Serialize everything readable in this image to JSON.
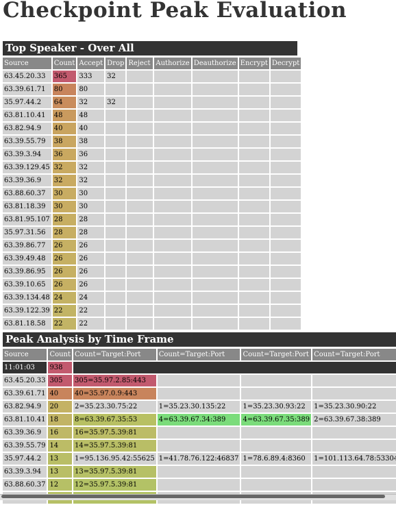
{
  "page": {
    "title": "Checkpoint Peak Evaluation"
  },
  "top_speaker": {
    "heading": "Top Speaker - Over All",
    "columns": [
      "Source",
      "Count",
      "Accept",
      "Drop",
      "Reject",
      "Authorize",
      "Deauthorize",
      "Encrypt",
      "Decrypt"
    ],
    "rows": [
      {
        "source": "63.45.20.33",
        "count": "365",
        "accept": "333",
        "drop": "32",
        "color": "#c25a6e"
      },
      {
        "source": "63.39.61.71",
        "count": "80",
        "accept": "80",
        "drop": "",
        "color": "#c8845c"
      },
      {
        "source": "35.97.44.2",
        "count": "64",
        "accept": "32",
        "drop": "32",
        "color": "#c98c5c"
      },
      {
        "source": "63.81.10.41",
        "count": "48",
        "accept": "48",
        "drop": "",
        "color": "#c99a5e"
      },
      {
        "source": "63.82.94.9",
        "count": "40",
        "accept": "40",
        "drop": "",
        "color": "#c9a45f"
      },
      {
        "source": "63.39.55.79",
        "count": "38",
        "accept": "38",
        "drop": "",
        "color": "#c9a660"
      },
      {
        "source": "63.39.3.94",
        "count": "36",
        "accept": "36",
        "drop": "",
        "color": "#c9a860"
      },
      {
        "source": "63.39.129.45",
        "count": "32",
        "accept": "32",
        "drop": "",
        "color": "#c9aa61"
      },
      {
        "source": "63.39.36.9",
        "count": "32",
        "accept": "32",
        "drop": "",
        "color": "#c9aa61"
      },
      {
        "source": "63.88.60.37",
        "count": "30",
        "accept": "30",
        "drop": "",
        "color": "#c8ac62"
      },
      {
        "source": "63.81.18.39",
        "count": "30",
        "accept": "30",
        "drop": "",
        "color": "#c8ac62"
      },
      {
        "source": "63.81.95.107",
        "count": "28",
        "accept": "28",
        "drop": "",
        "color": "#c7ae62"
      },
      {
        "source": "35.97.31.56",
        "count": "28",
        "accept": "28",
        "drop": "",
        "color": "#c7ae62"
      },
      {
        "source": "63.39.86.77",
        "count": "26",
        "accept": "26",
        "drop": "",
        "color": "#c6b063"
      },
      {
        "source": "63.39.49.48",
        "count": "26",
        "accept": "26",
        "drop": "",
        "color": "#c6b063"
      },
      {
        "source": "63.39.86.95",
        "count": "26",
        "accept": "26",
        "drop": "",
        "color": "#c6b063"
      },
      {
        "source": "63.39.10.65",
        "count": "26",
        "accept": "26",
        "drop": "",
        "color": "#c6b063"
      },
      {
        "source": "63.39.134.48",
        "count": "24",
        "accept": "24",
        "drop": "",
        "color": "#c4b264"
      },
      {
        "source": "63.39.122.39",
        "count": "22",
        "accept": "22",
        "drop": "",
        "color": "#c2b465"
      },
      {
        "source": "63.81.18.58",
        "count": "22",
        "accept": "22",
        "drop": "",
        "color": "#c2b465"
      }
    ]
  },
  "peak_analysis": {
    "heading": "Peak Analysis by Time Frame",
    "columns": [
      "Source",
      "Count",
      "Count=Target:Port",
      "Count=Target:Port",
      "Count=Target:Port",
      "Count=Target:Port",
      "C"
    ],
    "time_row": {
      "time": "11:01:03",
      "count": "938"
    },
    "rows": [
      {
        "source": "63.45.20.33",
        "count": "305",
        "count_color": "#c25a6e",
        "targets": [
          {
            "t": "305=35.97.2.85:443",
            "c": "#c25a6e"
          },
          {
            "t": "",
            "c": ""
          },
          {
            "t": "",
            "c": ""
          },
          {
            "t": "",
            "c": ""
          }
        ]
      },
      {
        "source": "63.39.61.71",
        "count": "40",
        "count_color": "#c8845c",
        "targets": [
          {
            "t": "40=35.97.0.9:443",
            "c": "#c8845c"
          },
          {
            "t": "",
            "c": ""
          },
          {
            "t": "",
            "c": ""
          },
          {
            "t": "",
            "c": ""
          }
        ]
      },
      {
        "source": "63.82.94.9",
        "count": "20",
        "count_color": "#c4b264",
        "targets": [
          {
            "t": "2=35.23.30.75:22",
            "c": ""
          },
          {
            "t": "1=35.23.30.135:22",
            "c": ""
          },
          {
            "t": "1=35.23.30.93:22",
            "c": ""
          },
          {
            "t": "1=35.23.30.90:22",
            "c": ""
          }
        ]
      },
      {
        "source": "63.81.10.41",
        "count": "18",
        "count_color": "#c2b465",
        "targets": [
          {
            "t": "8=63.39.67.35:53",
            "c": "#b8c063"
          },
          {
            "t": "4=63.39.67.34:389",
            "c": "#7bdc7b"
          },
          {
            "t": "4=63.39.67.35:389",
            "c": "#7bdc7b"
          },
          {
            "t": "2=63.39.67.38:389",
            "c": ""
          }
        ]
      },
      {
        "source": "63.39.36.9",
        "count": "16",
        "count_color": "#bfb866",
        "targets": [
          {
            "t": "16=35.97.5.39:81",
            "c": "#bcbc66"
          },
          {
            "t": "",
            "c": ""
          },
          {
            "t": "",
            "c": ""
          },
          {
            "t": "",
            "c": ""
          }
        ]
      },
      {
        "source": "63.39.55.79",
        "count": "14",
        "count_color": "#bcbc66",
        "targets": [
          {
            "t": "14=35.97.5.39:81",
            "c": "#b9be66"
          },
          {
            "t": "",
            "c": ""
          },
          {
            "t": "",
            "c": ""
          },
          {
            "t": "",
            "c": ""
          }
        ]
      },
      {
        "source": "35.97.44.2",
        "count": "13",
        "count_color": "#b9be66",
        "targets": [
          {
            "t": "1=95.136.95.42:55625",
            "c": ""
          },
          {
            "t": "1=41.78.76.122:46837",
            "c": ""
          },
          {
            "t": "1=78.6.89.4:8360",
            "c": ""
          },
          {
            "t": "1=101.113.64.78:53304",
            "c": ""
          }
        ]
      },
      {
        "source": "63.39.3.94",
        "count": "13",
        "count_color": "#b9be66",
        "targets": [
          {
            "t": "13=35.97.5.39:81",
            "c": "#b6c066"
          },
          {
            "t": "",
            "c": ""
          },
          {
            "t": "",
            "c": ""
          },
          {
            "t": "",
            "c": ""
          }
        ]
      },
      {
        "source": "63.88.60.37",
        "count": "12",
        "count_color": "#b6c066",
        "targets": [
          {
            "t": "12=35.97.5.39:81",
            "c": "#b3c266"
          },
          {
            "t": "",
            "c": ""
          },
          {
            "t": "",
            "c": ""
          },
          {
            "t": "",
            "c": ""
          }
        ]
      },
      {
        "source": "63.39.86.95",
        "count": "12",
        "count_color": "#b6c066",
        "targets": [
          {
            "t": "12=35.97.5.39:81",
            "c": "#b3c266"
          },
          {
            "t": "",
            "c": ""
          },
          {
            "t": "",
            "c": ""
          },
          {
            "t": "",
            "c": ""
          }
        ]
      }
    ]
  }
}
